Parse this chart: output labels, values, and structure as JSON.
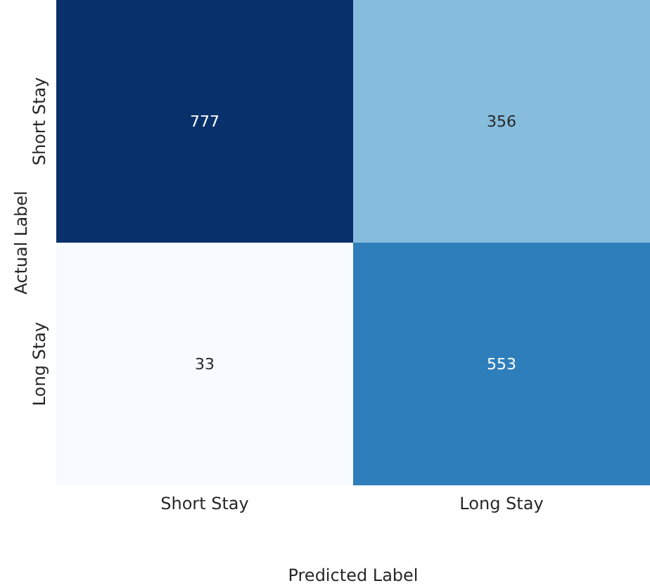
{
  "chart_data": {
    "type": "heatmap",
    "xlabel": "Predicted Label",
    "ylabel": "Actual Label",
    "categories": [
      "Short Stay",
      "Long Stay"
    ],
    "y_categories": [
      "Short Stay",
      "Long Stay"
    ],
    "cells": [
      [
        777,
        356
      ],
      [
        33,
        553
      ]
    ],
    "data_labels": true
  }
}
